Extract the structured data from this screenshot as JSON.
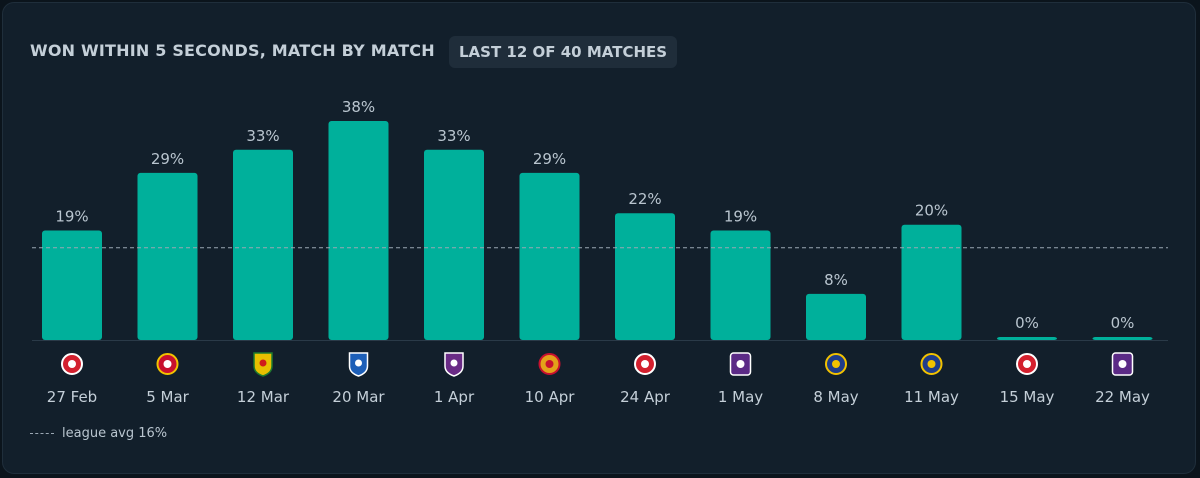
{
  "header": {
    "title": "WON WITHIN 5 SECONDS, MATCH BY MATCH",
    "badge": "LAST 12 OF 40 MATCHES"
  },
  "legend": {
    "label": "league avg 16%"
  },
  "colors": {
    "bar": "#00b09b",
    "background": "#121f2b",
    "text": "#c4cfd8",
    "avg_line": "#9aa7b3"
  },
  "chart_data": {
    "type": "bar",
    "title": "WON WITHIN 5 SECONDS, MATCH BY MATCH",
    "categories": [
      "27 Feb",
      "5 Mar",
      "12 Mar",
      "20 Mar",
      "1 Apr",
      "10 Apr",
      "24 Apr",
      "1 May",
      "8 May",
      "11 May",
      "15 May",
      "22 May"
    ],
    "values": [
      19,
      29,
      33,
      38,
      33,
      29,
      22,
      19,
      8,
      20,
      0,
      0
    ],
    "value_labels": [
      "19%",
      "29%",
      "33%",
      "38%",
      "33%",
      "29%",
      "22%",
      "19%",
      "8%",
      "20%",
      "0%",
      "0%"
    ],
    "opponent_crests": [
      "antwerp-crest-icon",
      "standard-liege-crest-icon",
      "ohl-crest-icon",
      "genk-crest-icon",
      "beerschot-crest-icon",
      "mechelen-crest-icon",
      "antwerp-crest-icon",
      "anderlecht-crest-icon",
      "union-sg-crest-icon",
      "union-sg-crest-icon",
      "antwerp-crest-icon",
      "anderlecht-crest-icon"
    ],
    "reference_line": {
      "label": "league avg 16%",
      "value": 16
    },
    "ylim": [
      0,
      38
    ],
    "grid": false,
    "legend_position": "bottom-left"
  }
}
